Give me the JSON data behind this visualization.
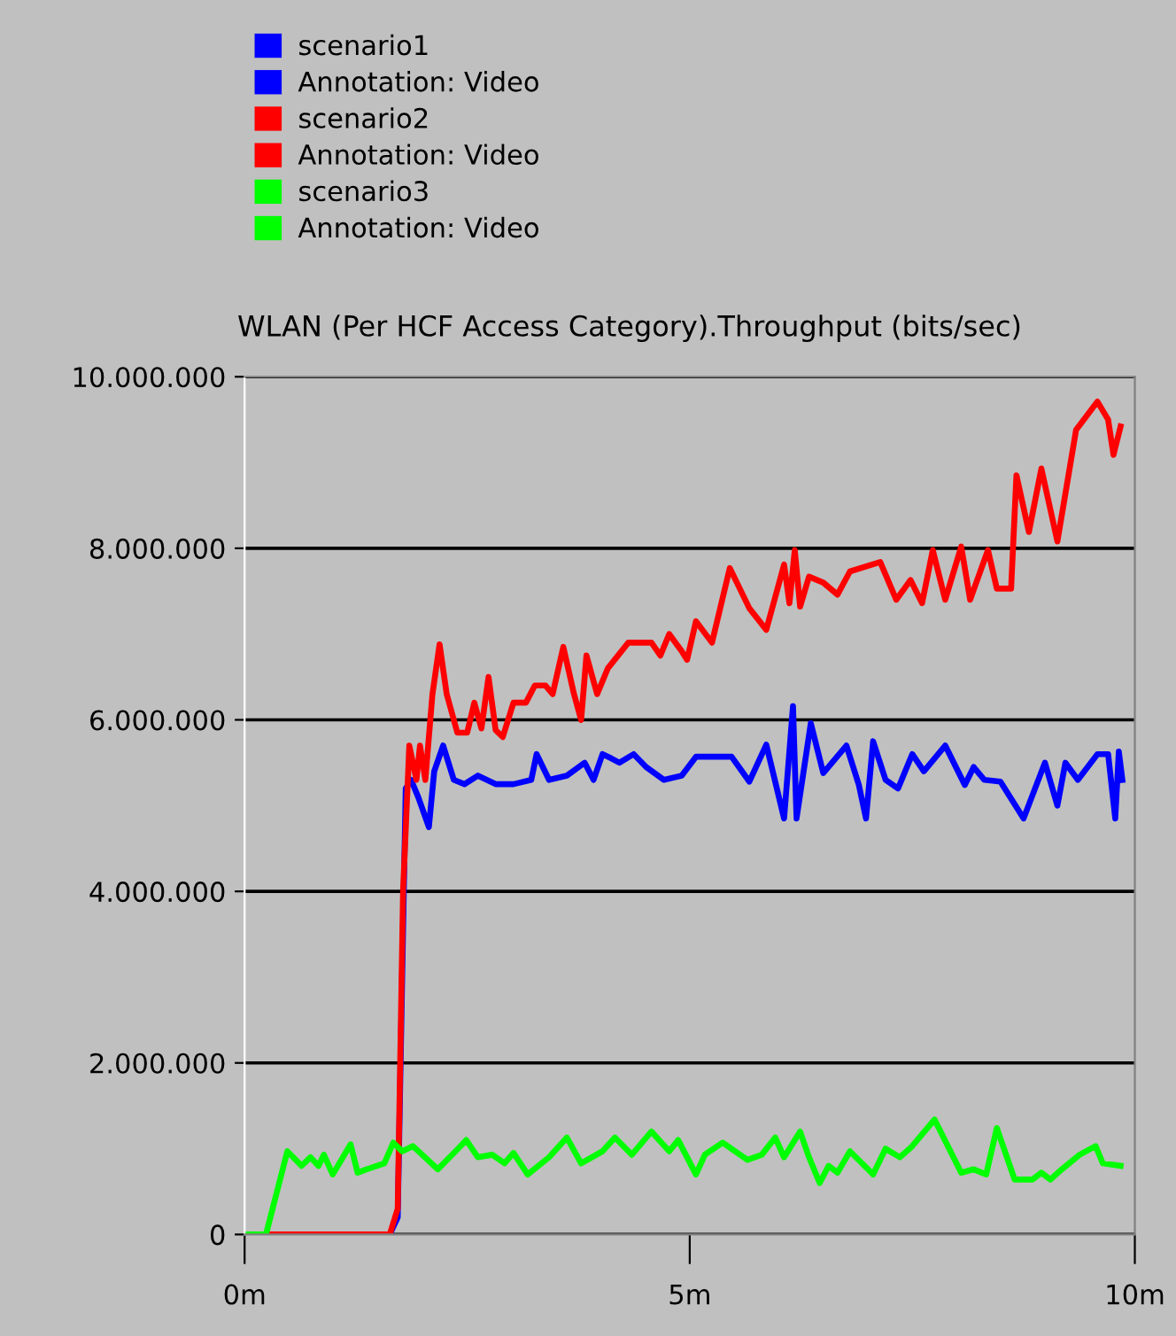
{
  "chart_data": {
    "type": "line",
    "title": "WLAN (Per HCF Access Category).Throughput (bits/sec)",
    "annotations": [
      "Annotation: Video",
      "Annotation: Video",
      "Annotation: Video"
    ],
    "xlim": [
      0,
      10
    ],
    "xticks": [
      {
        "value": 0,
        "label": "0m"
      },
      {
        "value": 5,
        "label": "5m"
      },
      {
        "value": 10,
        "label": "10m"
      }
    ],
    "ylim": [
      0,
      10000000
    ],
    "yticks": [
      {
        "value": 0,
        "label": "0"
      },
      {
        "value": 2000000,
        "label": "2.000.000"
      },
      {
        "value": 4000000,
        "label": "4.000.000"
      },
      {
        "value": 6000000,
        "label": "6.000.000"
      },
      {
        "value": 8000000,
        "label": "8.000.000"
      },
      {
        "value": 10000000,
        "label": "10.000.000"
      }
    ],
    "grid": "y",
    "legend": "top left",
    "marker": "none",
    "line_style": "solid",
    "series": [
      {
        "name": "scenario1",
        "color": "#0000ff",
        "x": [
          0,
          1.63,
          1.72,
          1.77,
          1.81,
          1.87,
          1.95,
          2.07,
          2.13,
          2.23,
          2.35,
          2.47,
          2.62,
          2.82,
          3.02,
          3.22,
          3.28,
          3.42,
          3.62,
          3.82,
          3.92,
          4.02,
          4.12,
          4.21,
          4.37,
          4.51,
          4.71,
          4.91,
          5.07,
          5.47,
          5.67,
          5.86,
          6.06,
          6.16,
          6.2,
          6.36,
          6.5,
          6.76,
          6.9,
          6.98,
          7.06,
          7.2,
          7.34,
          7.5,
          7.63,
          7.87,
          8.09,
          8.19,
          8.31,
          8.49,
          8.75,
          8.99,
          9.13,
          9.22,
          9.36,
          9.58,
          9.7,
          9.78,
          9.82,
          9.86
        ],
        "values": [
          0,
          0,
          200000,
          3000000,
          5200000,
          5300000,
          5100000,
          4750000,
          5400000,
          5700000,
          5300000,
          5250000,
          5350000,
          5250000,
          5250000,
          5300000,
          5600000,
          5300000,
          5350000,
          5500000,
          5300000,
          5600000,
          5550000,
          5500000,
          5600000,
          5450000,
          5300000,
          5350000,
          5570000,
          5570000,
          5280000,
          5710000,
          4850000,
          6160000,
          4850000,
          5960000,
          5380000,
          5700000,
          5240000,
          4850000,
          5750000,
          5300000,
          5200000,
          5600000,
          5400000,
          5700000,
          5240000,
          5450000,
          5300000,
          5280000,
          4850000,
          5500000,
          5000000,
          5500000,
          5300000,
          5600000,
          5600000,
          4850000,
          5630000,
          5300000
        ]
      },
      {
        "name": "scenario2",
        "color": "#ff0000",
        "x": [
          0,
          1.63,
          1.72,
          1.78,
          1.85,
          1.93,
          1.97,
          2.03,
          2.11,
          2.19,
          2.27,
          2.39,
          2.5,
          2.58,
          2.66,
          2.74,
          2.82,
          2.9,
          3.02,
          3.16,
          3.26,
          3.38,
          3.46,
          3.58,
          3.7,
          3.78,
          3.84,
          3.96,
          4.08,
          4.31,
          4.57,
          4.67,
          4.77,
          4.91,
          4.97,
          5.07,
          5.25,
          5.45,
          5.67,
          5.86,
          6.06,
          6.12,
          6.18,
          6.24,
          6.34,
          6.5,
          6.66,
          6.8,
          7.14,
          7.32,
          7.48,
          7.61,
          7.73,
          7.87,
          8.05,
          8.15,
          8.35,
          8.45,
          8.61,
          8.67,
          8.81,
          8.95,
          9.13,
          9.34,
          9.58,
          9.7,
          9.76,
          9.84
        ],
        "values": [
          0,
          0,
          300000,
          4000000,
          5700000,
          5300000,
          5700000,
          5300000,
          6300000,
          6880000,
          6300000,
          5850000,
          5850000,
          6200000,
          5900000,
          6500000,
          5880000,
          5800000,
          6200000,
          6200000,
          6400000,
          6400000,
          6300000,
          6850000,
          6300000,
          6000000,
          6750000,
          6300000,
          6600000,
          6900000,
          6900000,
          6750000,
          7000000,
          6800000,
          6700000,
          7150000,
          6900000,
          7770000,
          7300000,
          7050000,
          7810000,
          7360000,
          7980000,
          7320000,
          7670000,
          7600000,
          7460000,
          7730000,
          7840000,
          7400000,
          7630000,
          7360000,
          7980000,
          7400000,
          8020000,
          7400000,
          7980000,
          7530000,
          7530000,
          8850000,
          8190000,
          8930000,
          8080000,
          9380000,
          9710000,
          9500000,
          9090000,
          9420000
        ]
      },
      {
        "name": "scenario3",
        "color": "#00ff00",
        "x": [
          0,
          0.24,
          0.48,
          0.64,
          0.74,
          0.83,
          0.89,
          0.99,
          1.19,
          1.27,
          1.37,
          1.57,
          1.67,
          1.77,
          1.89,
          2.17,
          2.37,
          2.49,
          2.62,
          2.78,
          2.92,
          3.02,
          3.18,
          3.42,
          3.62,
          3.78,
          4.02,
          4.16,
          4.35,
          4.57,
          4.77,
          4.87,
          5.07,
          5.17,
          5.37,
          5.65,
          5.81,
          5.96,
          6.06,
          6.24,
          6.34,
          6.46,
          6.56,
          6.66,
          6.8,
          7.06,
          7.2,
          7.36,
          7.5,
          7.75,
          8.05,
          8.19,
          8.33,
          8.45,
          8.65,
          8.85,
          8.95,
          9.05,
          9.18,
          9.38,
          9.56,
          9.64,
          9.84
        ],
        "values": [
          0,
          0,
          970000,
          800000,
          900000,
          800000,
          930000,
          700000,
          1050000,
          720000,
          760000,
          830000,
          1070000,
          970000,
          1030000,
          760000,
          970000,
          1100000,
          900000,
          930000,
          830000,
          950000,
          700000,
          900000,
          1130000,
          830000,
          970000,
          1130000,
          930000,
          1200000,
          970000,
          1100000,
          700000,
          930000,
          1070000,
          870000,
          930000,
          1130000,
          900000,
          1200000,
          900000,
          600000,
          800000,
          720000,
          970000,
          700000,
          1000000,
          900000,
          1030000,
          1340000,
          720000,
          760000,
          700000,
          1240000,
          640000,
          640000,
          720000,
          640000,
          760000,
          930000,
          1030000,
          830000,
          800000
        ]
      }
    ]
  }
}
